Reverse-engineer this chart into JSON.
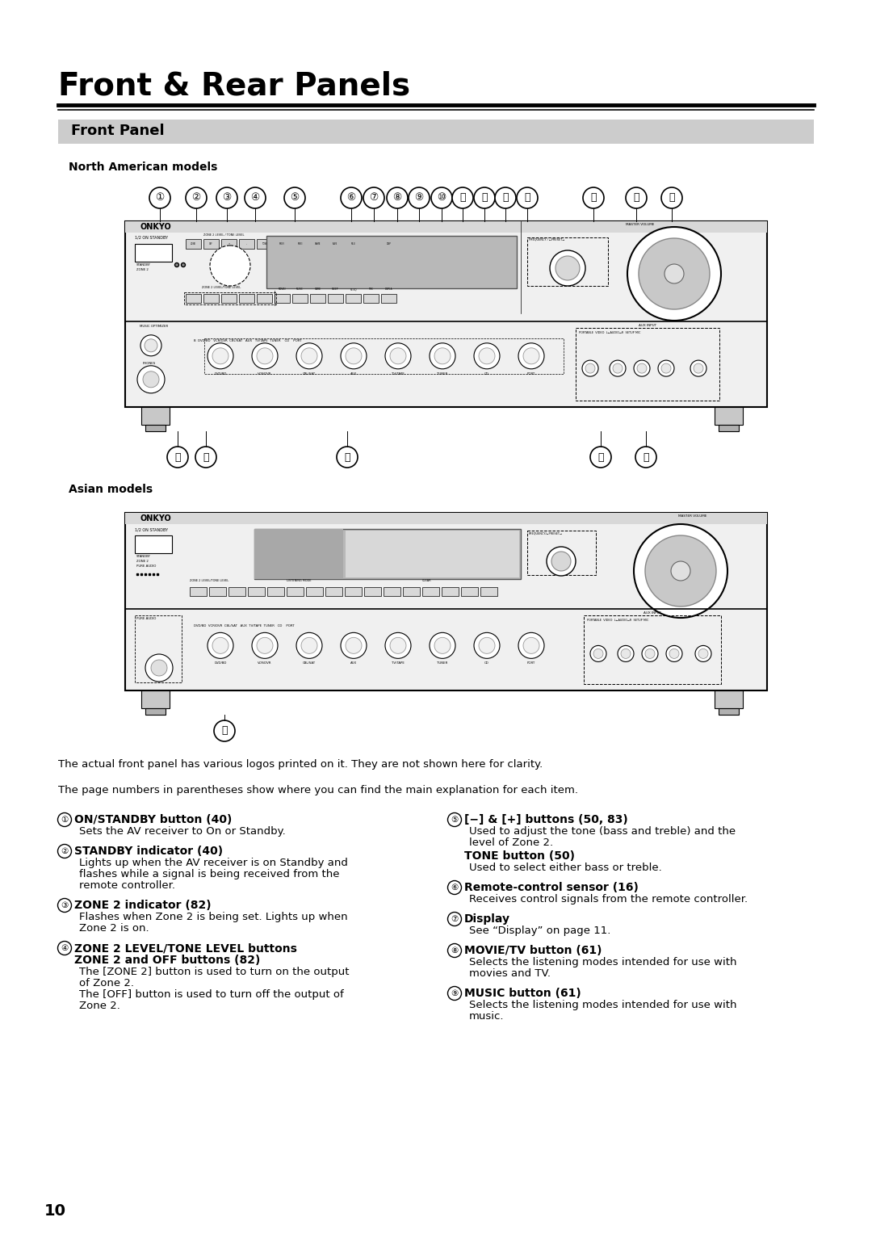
{
  "title": "Front & Rear Panels",
  "section_title": "Front Panel",
  "subsection_na": "North American models",
  "subsection_asian": "Asian models",
  "bg_color": "#ffffff",
  "section_bg": "#cccccc",
  "clarity_note": "The actual front panel has various logos printed on it. They are not shown here for clarity.",
  "page_note": "The page numbers in parentheses show where you can find the main explanation for each item.",
  "page_number": "10",
  "items_left": [
    {
      "num": "①",
      "title": "ON/STANDBY button (40)",
      "desc": "Sets the AV receiver to On or Standby."
    },
    {
      "num": "②",
      "title": "STANDBY indicator (40)",
      "desc": "Lights up when the AV receiver is on Standby and\nflashes while a signal is being received from the\nremote controller."
    },
    {
      "num": "③",
      "title": "ZONE 2 indicator (82)",
      "desc": "Flashes when Zone 2 is being set. Lights up when\nZone 2 is on."
    },
    {
      "num": "④",
      "title": "ZONE 2 LEVEL/TONE LEVEL buttons\nZONE 2 and OFF buttons (82)",
      "desc": "The [ZONE 2] button is used to turn on the output\nof Zone 2.\nThe [OFF] button is used to turn off the output of\nZone 2."
    }
  ],
  "items_right": [
    {
      "num": "⑤",
      "title": "[−] & [+] buttons (50, 83)",
      "desc": "Used to adjust the tone (bass and treble) and the\nlevel of Zone 2.",
      "extra_title": "TONE button (50)",
      "extra_desc": "Used to select either bass or treble."
    },
    {
      "num": "⑥",
      "title": "Remote-control sensor (16)",
      "desc": "Receives control signals from the remote controller."
    },
    {
      "num": "⑦",
      "title": "Display",
      "desc": "See “Display” on page 11."
    },
    {
      "num": "⑧",
      "title": "MOVIE/TV button (61)",
      "desc": "Selects the listening modes intended for use with\nmovies and TV."
    },
    {
      "num": "⑨",
      "title": "MUSIC button (61)",
      "desc": "Selects the listening modes intended for use with\nmusic."
    }
  ]
}
